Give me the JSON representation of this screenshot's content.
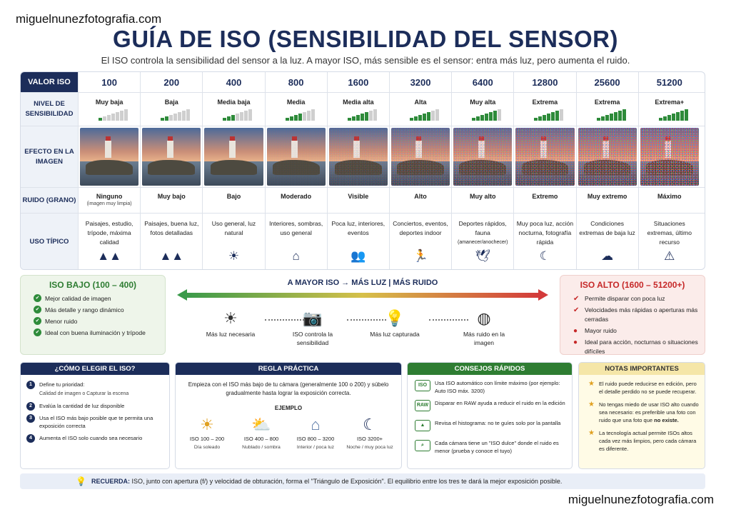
{
  "site": "miguelnunezfotografia.com",
  "title": "GUÍA DE ISO (SENSIBILIDAD DEL SENSOR)",
  "subtitle": "El ISO controla la sensibilidad del sensor a la luz.  A mayor ISO, más sensible es el sensor: entra más luz, pero aumenta el ruido.",
  "table": {
    "headers": {
      "valor": "VALOR ISO",
      "nivel": "NIVEL DE SENSIBILIDAD",
      "efecto": "EFECTO EN LA IMAGEN",
      "ruido": "RUIDO (GRANO)",
      "uso": "USO TÍPICO"
    },
    "columns": [
      {
        "iso": "100",
        "level": "Muy baja",
        "bars": 1,
        "noise": "Ninguno",
        "noise_note": "(imagen muy limpia)",
        "use": "Paisajes, estudio, trípode, máxima calidad",
        "use_note": "",
        "icon": "mountain-icon",
        "glyph": "▲▲",
        "grain": 0
      },
      {
        "iso": "200",
        "level": "Baja",
        "bars": 2,
        "noise": "Muy bajo",
        "noise_note": "",
        "use": "Paisajes, buena luz, fotos detalladas",
        "use_note": "",
        "icon": "mountain-icon",
        "glyph": "▲▲",
        "grain": 0
      },
      {
        "iso": "400",
        "level": "Media baja",
        "bars": 3,
        "noise": "Bajo",
        "noise_note": "",
        "use": "Uso general, luz natural",
        "use_note": "",
        "icon": "sun-icon",
        "glyph": "☀",
        "grain": 0
      },
      {
        "iso": "800",
        "level": "Media",
        "bars": 4,
        "noise": "Moderado",
        "noise_note": "",
        "use": "Interiores, sombras, uso general",
        "use_note": "",
        "icon": "house-icon",
        "glyph": "⌂",
        "grain": 0.05
      },
      {
        "iso": "1600",
        "level": "Media alta",
        "bars": 5,
        "noise": "Visible",
        "noise_note": "",
        "use": "Poca luz, interiores, eventos",
        "use_note": "",
        "icon": "people-icon",
        "glyph": "👥",
        "grain": 0.15
      },
      {
        "iso": "3200",
        "level": "Alta",
        "bars": 5,
        "noise": "Alto",
        "noise_note": "",
        "use": "Conciertos, eventos, deportes indoor",
        "use_note": "",
        "icon": "runner-icon",
        "glyph": "🏃",
        "grain": 0.3
      },
      {
        "iso": "6400",
        "level": "Muy alta",
        "bars": 6,
        "noise": "Muy alto",
        "noise_note": "",
        "use": "Deportes rápidos, fauna",
        "use_note": "(amanecer/anochecer)",
        "icon": "bird-icon",
        "glyph": "🕊",
        "grain": 0.45
      },
      {
        "iso": "12800",
        "level": "Extrema",
        "bars": 6,
        "noise": "Extremo",
        "noise_note": "",
        "use": "Muy poca luz, acción nocturna, fotografía rápida",
        "use_note": "",
        "icon": "moon-icon",
        "glyph": "☾",
        "grain": 0.6
      },
      {
        "iso": "25600",
        "level": "Extrema",
        "bars": 7,
        "noise": "Muy extremo",
        "noise_note": "",
        "use": "Condiciones extremas de baja luz",
        "use_note": "",
        "icon": "storm-cloud-icon",
        "glyph": "☁",
        "grain": 0.75
      },
      {
        "iso": "51200",
        "level": "Extrema+",
        "bars": 7,
        "noise": "Máximo",
        "noise_note": "",
        "use": "Situaciones extremas, último recurso",
        "use_note": "",
        "icon": "warning-icon",
        "glyph": "⚠",
        "grain": 0.9
      }
    ]
  },
  "low": {
    "title": "ISO BAJO (100 – 400)",
    "items": [
      "Mejor calidad de imagen",
      "Más detalle y rango dinámico",
      "Menor ruido",
      "Ideal con buena iluminación y trípode"
    ]
  },
  "high": {
    "title": "ISO ALTO (1600 – 51200+)",
    "items": [
      "Permite disparar con poca luz",
      "Velocidades más rápidas o aperturas más cerradas",
      "Mayor ruido",
      "Ideal para acción, nocturnas o situaciones difíciles"
    ]
  },
  "center": {
    "title": "A MAYOR ISO  →  MÁS LUZ  |  MÁS RUIDO",
    "steps": [
      {
        "icon": "sun-icon",
        "glyph": "☀",
        "label": "Más luz necesaria"
      },
      {
        "icon": "camera-icon",
        "glyph": "📷",
        "label": "ISO controla la sensibilidad"
      },
      {
        "icon": "lightbulb-icon",
        "glyph": "💡",
        "label": "Más luz capturada"
      },
      {
        "icon": "noise-icon",
        "glyph": "◍",
        "label": "Más ruido en la imagen"
      }
    ]
  },
  "choose": {
    "title": "¿CÓMO ELEGIR EL ISO?",
    "steps": [
      {
        "n": "1",
        "text": "Define tu prioridad:",
        "sub": "Calidad de imagen   o   Capturar la escena"
      },
      {
        "n": "2",
        "text": "Evalúa la cantidad de luz disponible",
        "sub": ""
      },
      {
        "n": "3",
        "text": "Usa el ISO más bajo posible que te permita una exposición correcta",
        "sub": ""
      },
      {
        "n": "4",
        "text": "Aumenta el ISO solo cuando sea necesario",
        "sub": ""
      }
    ]
  },
  "rule": {
    "title": "REGLA PRÁCTICA",
    "intro": "Empieza con el ISO más bajo de tu cámara (generalmente 100 o 200) y súbelo gradualmente hasta lograr la exposición correcta.",
    "example_title": "EJEMPLO",
    "examples": [
      {
        "icon": "sun-icon",
        "glyph": "☀",
        "range": "ISO 100 – 200",
        "cond": "Día soleado"
      },
      {
        "icon": "cloud-sun-icon",
        "glyph": "⛅",
        "range": "ISO 400 – 800",
        "cond": "Nublado / sombra"
      },
      {
        "icon": "house-icon",
        "glyph": "⌂",
        "range": "ISO 800 – 3200",
        "cond": "Interior / poca luz"
      },
      {
        "icon": "moon-icon",
        "glyph": "☾",
        "range": "ISO 3200+",
        "cond": "Noche / muy poca luz"
      }
    ]
  },
  "tips": {
    "title": "CONSEJOS RÁPIDOS",
    "items": [
      {
        "badge": "ISO",
        "text": "Usa ISO automático con límite máximo (por ejemplo: Auto ISO máx. 3200)"
      },
      {
        "badge": "RAW",
        "text": "Disparar en RAW ayuda a reducir el ruido en la edición"
      },
      {
        "badge": "▲",
        "text": "Revisa el histograma: no te guíes solo por la pantalla"
      },
      {
        "badge": "⌕",
        "text": "Cada cámara tiene un \"ISO dulce\" donde el ruido es menor (prueba y conoce el tuyo)"
      }
    ]
  },
  "notes": {
    "title": "NOTAS IMPORTANTES",
    "items": [
      {
        "text": "El ruido puede reducirse en edición, pero el detalle perdido no se puede recuperar.",
        "bold": ""
      },
      {
        "text": "No tengas miedo de usar ISO alto cuando sea necesario: es preferible una foto con ruido que una foto que ",
        "bold": "no existe."
      },
      {
        "text": "La tecnología actual permite ISOs altos cada vez más limpios, pero cada cámara es diferente.",
        "bold": ""
      }
    ]
  },
  "footer": {
    "label": "RECUERDA:",
    "text": "ISO, junto con apertura (f/) y velocidad de obturación, forma el \"Triángulo de Exposición\".  El equilibrio entre los tres te dará la mejor exposición posible."
  }
}
